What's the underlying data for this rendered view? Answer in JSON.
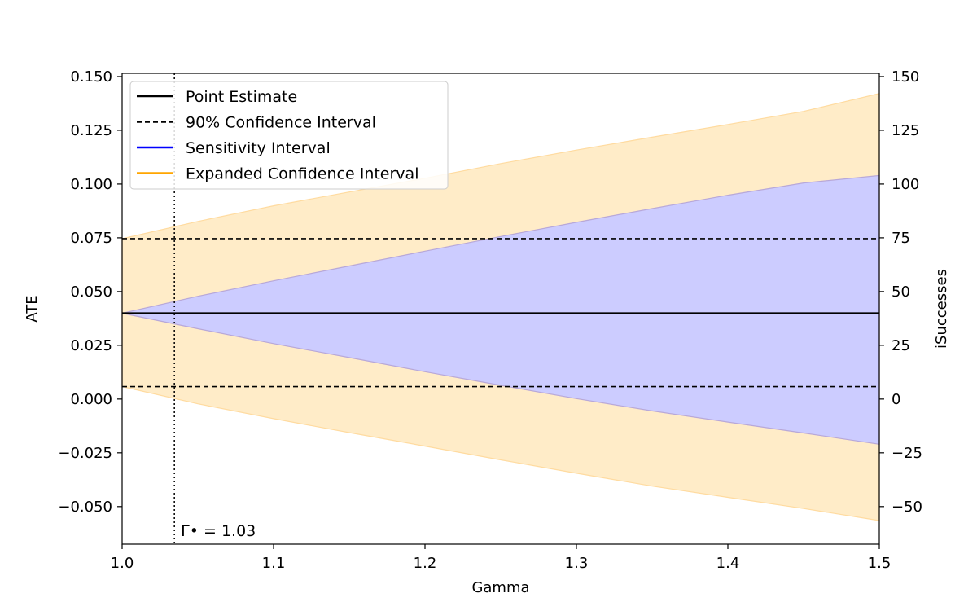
{
  "chart_data": {
    "type": "area",
    "xlabel": "Gamma",
    "ylabel": "ATE",
    "y2label": "iSuccesses",
    "xlim": [
      1.0,
      1.5
    ],
    "ylim": [
      -0.0675,
      0.1515
    ],
    "y2lim": [
      -67.5,
      151.5
    ],
    "x_ticks": [
      1.0,
      1.1,
      1.2,
      1.3,
      1.4,
      1.5
    ],
    "x_tick_labels": [
      "1.0",
      "1.1",
      "1.2",
      "1.3",
      "1.4",
      "1.5"
    ],
    "y_ticks": [
      -0.05,
      -0.025,
      0.0,
      0.025,
      0.05,
      0.075,
      0.1,
      0.125,
      0.15
    ],
    "y_tick_labels": [
      "−0.050",
      "−0.025",
      "0.000",
      "0.025",
      "0.050",
      "0.075",
      "0.100",
      "0.125",
      "0.150"
    ],
    "y2_ticks": [
      -50,
      -25,
      0,
      25,
      50,
      75,
      100,
      125,
      150
    ],
    "y2_tick_labels": [
      "−50",
      "−25",
      "0",
      "25",
      "50",
      "75",
      "100",
      "125",
      "150"
    ],
    "point_estimate": 0.0399,
    "ci_90": [
      0.0058,
      0.0746
    ],
    "series": [
      {
        "name": "Expanded Confidence Interval",
        "color": "#ffa500",
        "fill": "#ffecc8",
        "x": [
          1.0,
          1.05,
          1.1,
          1.15,
          1.2,
          1.25,
          1.3,
          1.35,
          1.4,
          1.45,
          1.5
        ],
        "lower": [
          0.0058,
          -0.0022,
          -0.0091,
          -0.0156,
          -0.0219,
          -0.0283,
          -0.0345,
          -0.0405,
          -0.0457,
          -0.0509,
          -0.0565
        ],
        "upper": [
          0.0746,
          0.0826,
          0.0899,
          0.0963,
          0.1027,
          0.1095,
          0.1158,
          0.1218,
          0.1277,
          0.1338,
          0.1421
        ]
      },
      {
        "name": "Sensitivity Interval",
        "color": "#0000ff",
        "fill": "#ccccff",
        "x": [
          1.0,
          1.05,
          1.1,
          1.15,
          1.2,
          1.25,
          1.3,
          1.35,
          1.4,
          1.45,
          1.5
        ],
        "lower": [
          0.0399,
          0.0327,
          0.0258,
          0.0193,
          0.0127,
          0.0064,
          0.0002,
          -0.0055,
          -0.0107,
          -0.0158,
          -0.021
        ],
        "upper": [
          0.0399,
          0.0478,
          0.055,
          0.0619,
          0.0688,
          0.0756,
          0.0822,
          0.0886,
          0.0948,
          0.1005,
          0.104
        ]
      }
    ],
    "legend": {
      "position": "top-left",
      "entries": [
        {
          "label": "Point Estimate",
          "color": "#000000",
          "style": "solid"
        },
        {
          "label": "90% Confidence Interval",
          "color": "#000000",
          "style": "dashed"
        },
        {
          "label": "Sensitivity Interval",
          "color": "#0000ff",
          "style": "solid"
        },
        {
          "label": "Expanded Confidence Interval",
          "color": "#ffa500",
          "style": "solid"
        }
      ]
    },
    "annotation": {
      "text": "Γ• = 1.03",
      "x_value": 1.0345
    },
    "grid": false
  }
}
